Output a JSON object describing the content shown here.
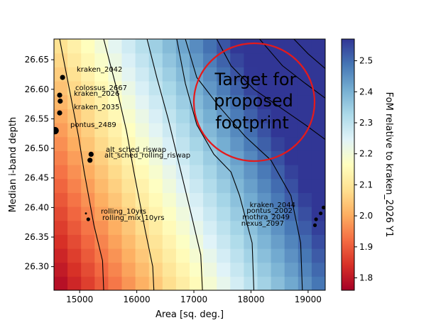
{
  "chart_data": {
    "type": "heatmap",
    "title": "",
    "xlabel": "Area [sq. deg.]",
    "ylabel": "Median i-band depth",
    "colorbar_label": "FoM relative to kraken_2026 Y1",
    "colormap": "RdYlBu",
    "xlim": [
      14550,
      19300
    ],
    "ylim": [
      26.26,
      26.685
    ],
    "clim": [
      1.76,
      2.57
    ],
    "x_ticks": [
      15000,
      16000,
      17000,
      18000,
      19000
    ],
    "x_tick_labels": [
      "15000",
      "16000",
      "17000",
      "18000",
      "19000"
    ],
    "y_ticks": [
      26.3,
      26.35,
      26.4,
      26.45,
      26.5,
      26.55,
      26.6,
      26.65
    ],
    "y_tick_labels": [
      "26.30",
      "26.35",
      "26.40",
      "26.45",
      "26.50",
      "26.55",
      "26.60",
      "26.65"
    ],
    "colorbar_ticks": [
      1.8,
      1.9,
      2.0,
      2.1,
      2.2,
      2.3,
      2.4,
      2.5
    ],
    "colorbar_tick_labels": [
      "1.8",
      "1.9",
      "2.0",
      "2.1",
      "2.2",
      "2.3",
      "2.4",
      "2.5"
    ],
    "grid": false,
    "heatmap_model": {
      "base": 1.76,
      "area_coefficient": 0.000155,
      "depth_coefficient": 0.75,
      "area_reference": 14550,
      "depth_reference": 26.26
    },
    "contours": [
      {
        "points": [
          [
            15420,
            26.26
          ],
          [
            15400,
            26.31
          ],
          [
            15250,
            26.37
          ],
          [
            15080,
            26.46
          ],
          [
            14980,
            26.52
          ],
          [
            14820,
            26.6
          ],
          [
            14650,
            26.685
          ]
        ]
      },
      {
        "points": [
          [
            16300,
            26.26
          ],
          [
            16280,
            26.3
          ],
          [
            16150,
            26.36
          ],
          [
            15950,
            26.46
          ],
          [
            15820,
            26.53
          ],
          [
            15650,
            26.6
          ],
          [
            15420,
            26.685
          ]
        ]
      },
      {
        "points": [
          [
            17150,
            26.26
          ],
          [
            17120,
            26.32
          ],
          [
            16950,
            26.39
          ],
          [
            16750,
            26.47
          ],
          [
            16550,
            26.55
          ],
          [
            16350,
            26.62
          ],
          [
            16180,
            26.685
          ]
        ]
      },
      {
        "points": [
          [
            18050,
            26.26
          ],
          [
            18020,
            26.34
          ],
          [
            17800,
            26.42
          ],
          [
            17650,
            26.46
          ],
          [
            17350,
            26.49
          ],
          [
            17050,
            26.54
          ],
          [
            16850,
            26.61
          ],
          [
            16700,
            26.685
          ]
        ]
      },
      {
        "points": [
          [
            18900,
            26.26
          ],
          [
            18870,
            26.34
          ],
          [
            18700,
            26.42
          ],
          [
            18350,
            26.48
          ],
          [
            17900,
            26.52
          ],
          [
            17450,
            26.57
          ],
          [
            17050,
            26.62
          ],
          [
            16850,
            26.685
          ]
        ]
      },
      {
        "points": [
          [
            19300,
            26.515
          ],
          [
            18950,
            26.54
          ],
          [
            18500,
            26.57
          ],
          [
            18050,
            26.6
          ],
          [
            17650,
            26.64
          ],
          [
            17400,
            26.685
          ]
        ]
      },
      {
        "points": [
          [
            19300,
            26.585
          ],
          [
            18950,
            26.61
          ],
          [
            18550,
            26.64
          ],
          [
            18150,
            26.685
          ]
        ]
      },
      {
        "points": [
          [
            19300,
            26.635
          ],
          [
            19000,
            26.66
          ],
          [
            18750,
            26.685
          ]
        ]
      }
    ],
    "points": [
      {
        "label": "kraken_2042",
        "x": 14700,
        "y": 26.62,
        "size": "medium"
      },
      {
        "label": "colossus_2667",
        "x": 14650,
        "y": 26.59,
        "size": "medium"
      },
      {
        "label": "kraken_2026",
        "x": 14660,
        "y": 26.58,
        "size": "medium"
      },
      {
        "label": "kraken_2035",
        "x": 14650,
        "y": 26.56,
        "size": "medium"
      },
      {
        "label": "pontus_2489",
        "x": 14570,
        "y": 26.53,
        "size": "large"
      },
      {
        "label": "alt_sched_riswap",
        "x": 15200,
        "y": 26.49,
        "size": "medium"
      },
      {
        "label": "alt_sched_rolling_riswap",
        "x": 15180,
        "y": 26.48,
        "size": "medium"
      },
      {
        "label": "rolling_10yrs",
        "x": 15110,
        "y": 26.39,
        "size": "tiny"
      },
      {
        "label": "rolling_mix_10yrs",
        "x": 15150,
        "y": 26.38,
        "size": "small"
      },
      {
        "label": "kraken_2044",
        "x": 19270,
        "y": 26.4,
        "size": "small"
      },
      {
        "label": "pontus_2002",
        "x": 19220,
        "y": 26.39,
        "size": "small"
      },
      {
        "label": "mothra_2049",
        "x": 19140,
        "y": 26.38,
        "size": "small"
      },
      {
        "label": "nexus_2097",
        "x": 19120,
        "y": 26.37,
        "size": "small"
      }
    ],
    "annotation": {
      "lines": [
        "Target for",
        "proposed",
        "footprint"
      ],
      "circle_color": "#e41a1c"
    }
  }
}
